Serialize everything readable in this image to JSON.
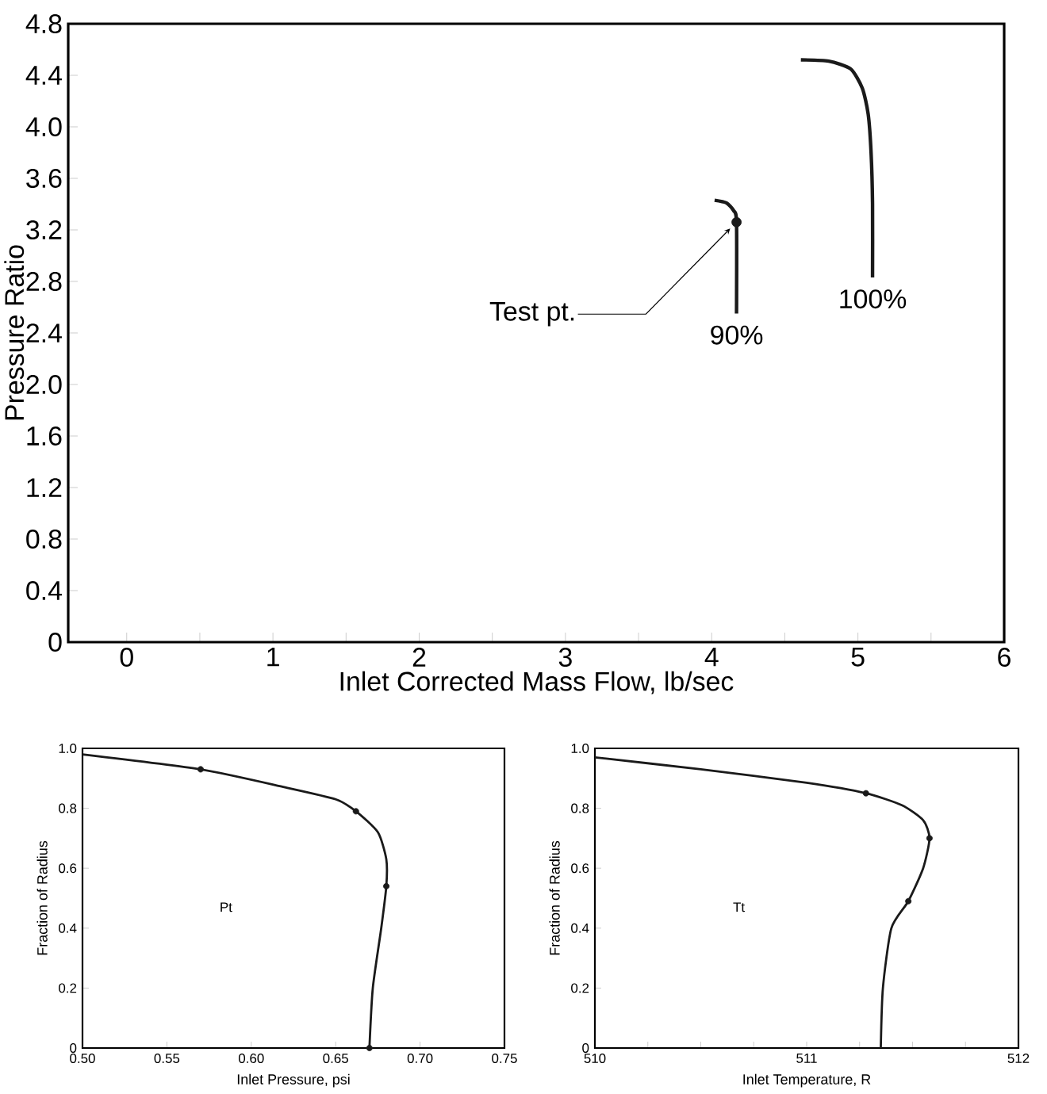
{
  "chart_data": [
    {
      "type": "line",
      "xlabel": "Inlet Corrected Mass Flow, lb/sec",
      "ylabel": "Pressure Ratio",
      "xlim": [
        -0.4,
        6
      ],
      "ylim": [
        0,
        4.8
      ],
      "xticks": [
        0,
        {
          "value": 0.5,
          "label": null
        },
        1,
        {
          "value": 1.5,
          "label": null
        },
        2,
        {
          "value": 2.5,
          "label": null
        },
        3,
        {
          "value": 3.5,
          "label": null
        },
        4,
        {
          "value": 4.5,
          "label": null
        },
        5,
        {
          "value": 5.5,
          "label": null
        },
        6
      ],
      "yticks": [
        0,
        0.4,
        0.8,
        1.2,
        1.6,
        {
          "value": 2,
          "label": "2.0"
        },
        2.4,
        2.8,
        3.2,
        3.6,
        {
          "value": 4,
          "label": "4.0"
        },
        4.4,
        4.8
      ],
      "series": [
        {
          "name": "90%",
          "color": "#1a1a1a",
          "x": [
            4.02,
            4.1,
            4.15,
            4.17,
            4.17
          ],
          "values": [
            3.43,
            3.41,
            3.35,
            3.26,
            2.55
          ]
        },
        {
          "name": "100%",
          "color": "#1a1a1a",
          "x": [
            4.61,
            4.8,
            4.95,
            5.03,
            5.07,
            5.09,
            5.1,
            5.1
          ],
          "values": [
            4.52,
            4.51,
            4.45,
            4.3,
            4.1,
            3.8,
            3.4,
            2.83
          ]
        },
        {
          "type": "scatter",
          "marker": "circle",
          "color": "#1a1a1a",
          "x": [
            4.17
          ],
          "values": [
            3.26
          ]
        }
      ],
      "annotations": [
        {
          "text": "Test pt.",
          "x": 4.17,
          "y": 3.26
        }
      ]
    },
    {
      "type": "line",
      "xlabel": "Inlet Pressure, psi",
      "ylabel": "Fraction of Radius",
      "xlim": [
        0.5,
        0.75
      ],
      "ylim": [
        0,
        1
      ],
      "xticks": [
        {
          "value": 0.5,
          "label": "0.50"
        },
        0.55,
        {
          "value": 0.6,
          "label": "0.60"
        },
        0.65,
        {
          "value": 0.7,
          "label": "0.70"
        },
        0.75
      ],
      "yticks": [
        0,
        0.2,
        0.4,
        0.6,
        0.8,
        {
          "value": 1,
          "label": "1.0"
        }
      ],
      "series": [
        {
          "color": "#1a1a1a",
          "x": [
            0.5,
            0.57,
            0.62,
            0.65,
            0.662,
            0.675,
            0.68,
            0.68,
            0.677,
            0.672,
            0.67
          ],
          "values": [
            0.98,
            0.93,
            0.87,
            0.83,
            0.79,
            0.72,
            0.63,
            0.54,
            0.4,
            0.2,
            0
          ]
        },
        {
          "type": "scatter",
          "marker": "circle",
          "color": "#1a1a1a",
          "x": [
            0.57,
            0.662,
            0.68,
            0.67
          ],
          "values": [
            0.93,
            0.79,
            0.54,
            0
          ]
        }
      ],
      "annotations": [
        "Pt"
      ]
    },
    {
      "type": "line",
      "xlabel": "Inlet Temperature, R",
      "ylabel": "Fraction of Radius",
      "xlim": [
        510,
        512
      ],
      "ylim": [
        0,
        1
      ],
      "xticks": [
        510,
        {
          "value": 510.25,
          "label": null
        },
        {
          "value": 510.5,
          "label": null
        },
        {
          "value": 510.75,
          "label": null
        },
        511,
        {
          "value": 511.25,
          "label": null
        },
        {
          "value": 511.5,
          "label": null
        },
        {
          "value": 511.75,
          "label": null
        },
        512
      ],
      "yticks": [
        0,
        0.2,
        0.4,
        0.6,
        0.8,
        {
          "value": 1,
          "label": "1.0"
        }
      ],
      "series": [
        {
          "color": "#1a1a1a",
          "x": [
            510,
            510.5,
            511.0,
            511.28,
            511.45,
            511.55,
            511.58,
            511.55,
            511.48,
            511.4,
            511.36,
            511.35
          ],
          "values": [
            0.97,
            0.93,
            0.885,
            0.85,
            0.81,
            0.76,
            0.7,
            0.6,
            0.49,
            0.4,
            0.2,
            0
          ]
        },
        {
          "type": "scatter",
          "marker": "circle",
          "color": "#1a1a1a",
          "x": [
            511.28,
            511.58,
            511.48
          ],
          "values": [
            0.85,
            0.7,
            0.49
          ]
        }
      ],
      "annotations": [
        "Tt"
      ]
    }
  ]
}
